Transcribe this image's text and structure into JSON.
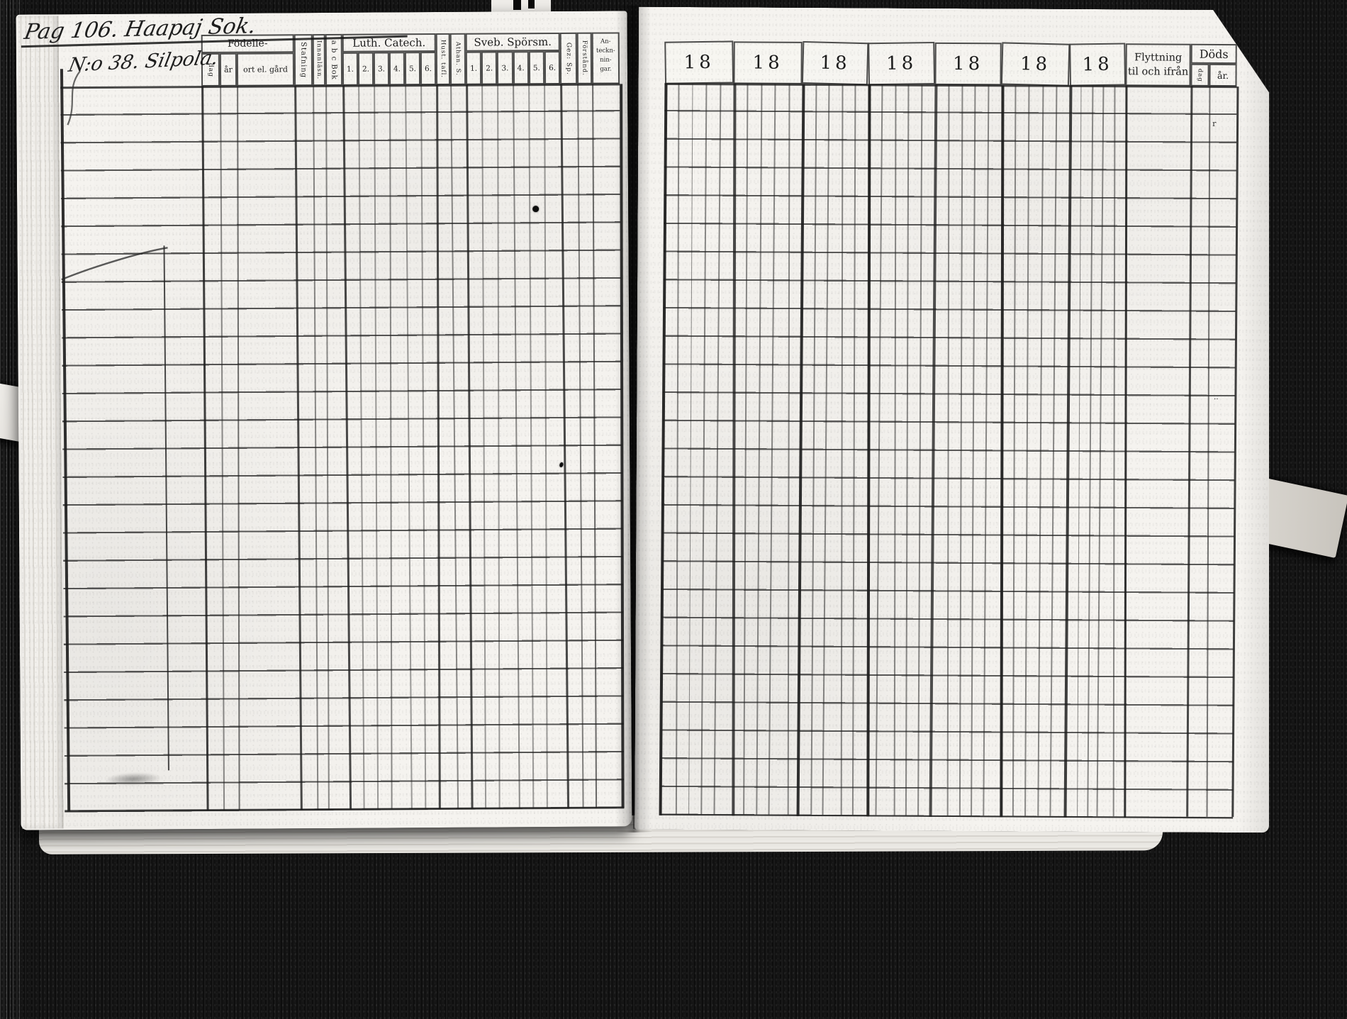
{
  "colors": {
    "background": "#121212",
    "page": "#f5f3ef",
    "ink": "#1e1e1e"
  },
  "handwriting": {
    "title": "Pag 106. Haapaj Sok.",
    "entry": "N:o 38. Silpola."
  },
  "left_table": {
    "header": {
      "fodelle_label": "Födelle-",
      "fodelle_sub": [
        "dag",
        "år",
        "ort el. gård"
      ],
      "stafning": "Stafning",
      "innanlasn": "Innanläsn.",
      "abcbok": "a b c Bok",
      "luth_label": "Luth. Catech.",
      "luth_sub": [
        "1.",
        "2.",
        "3.",
        "4.",
        "5.",
        "6."
      ],
      "hust_tafl": "Hust. tafl.",
      "athan": "Athan. S.",
      "sveb_label": "Sveb. Spörsm.",
      "sveb_sub": [
        "1.",
        "2.",
        "3.",
        "4.",
        "5.",
        "6."
      ],
      "gez_sp": "Gez: Sp.",
      "forstand": "Förstånd.",
      "anteckningar": [
        "An-",
        "teckn-",
        "nin-",
        "gar."
      ]
    },
    "row_count": 26
  },
  "right_table": {
    "year_labels": [
      "18",
      "18",
      "18",
      "18",
      "18",
      "18",
      "18"
    ],
    "flyttning_line1": "Flyttning",
    "flyttning_line2": "til och ifrån",
    "dods_label": "Döds",
    "dods_sub": [
      "dag",
      "år."
    ],
    "row_count": 26,
    "stray_marks": [
      "r",
      "··"
    ]
  }
}
